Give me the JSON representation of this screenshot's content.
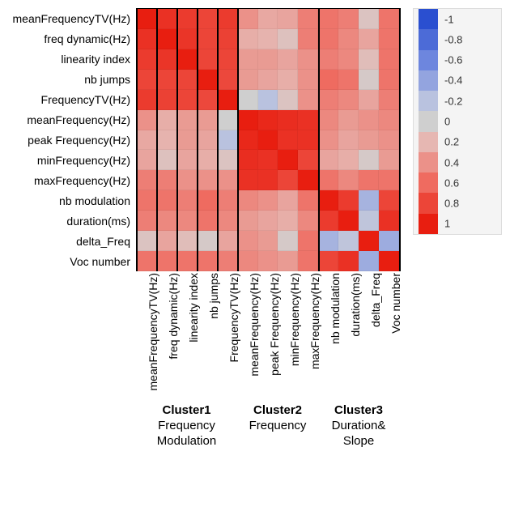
{
  "heatmap": {
    "type": "heatmap",
    "size": 13,
    "cell_border": "rgba(0,0,0,0.05)",
    "background_color": "#ffffff",
    "row_labels": [
      "meanFrequencyTV(Hz)",
      "freq dynamic(Hz)",
      "linearity index",
      "nb jumps",
      "FrequencyTV(Hz)",
      "meanFrequency(Hz)",
      "peak Frequency(Hz)",
      "minFrequency(Hz)",
      "maxFrequency(Hz)",
      "nb modulation",
      "duration(ms)",
      "delta_Freq",
      "Voc number"
    ],
    "col_labels": [
      "meanFrequencyTV(Hz)",
      "freq dynamic(Hz)",
      "linearity index",
      "nb jumps",
      "FrequencyTV(Hz)",
      "meanFrequency(Hz)",
      "peak Frequency(Hz)",
      "minFrequency(Hz)",
      "maxFrequency(Hz)",
      "nb modulation",
      "duration(ms)",
      "delta_Freq",
      "Voc number"
    ],
    "values": [
      [
        1.0,
        0.9,
        0.85,
        0.8,
        0.85,
        0.4,
        0.28,
        0.3,
        0.5,
        0.55,
        0.5,
        0.1,
        0.55
      ],
      [
        0.9,
        1.0,
        0.88,
        0.8,
        0.82,
        0.25,
        0.22,
        0.12,
        0.5,
        0.55,
        0.45,
        0.3,
        0.55
      ],
      [
        0.85,
        0.88,
        1.0,
        0.8,
        0.8,
        0.35,
        0.35,
        0.3,
        0.4,
        0.5,
        0.45,
        0.15,
        0.55
      ],
      [
        0.8,
        0.8,
        0.8,
        1.0,
        0.78,
        0.35,
        0.3,
        0.25,
        0.4,
        0.6,
        0.55,
        0.05,
        0.55
      ],
      [
        0.85,
        0.82,
        0.8,
        0.78,
        1.0,
        0.0,
        -0.2,
        0.1,
        0.4,
        0.5,
        0.45,
        0.3,
        0.5
      ],
      [
        0.4,
        0.25,
        0.35,
        0.35,
        0.0,
        1.0,
        0.95,
        0.92,
        0.9,
        0.45,
        0.35,
        0.4,
        0.45
      ],
      [
        0.28,
        0.22,
        0.35,
        0.3,
        -0.2,
        0.95,
        1.0,
        0.9,
        0.9,
        0.4,
        0.3,
        0.35,
        0.4
      ],
      [
        0.3,
        0.12,
        0.3,
        0.25,
        0.1,
        0.92,
        0.9,
        1.0,
        0.8,
        0.3,
        0.25,
        0.05,
        0.35
      ],
      [
        0.5,
        0.5,
        0.4,
        0.4,
        0.4,
        0.9,
        0.9,
        0.8,
        1.0,
        0.55,
        0.45,
        0.55,
        0.55
      ],
      [
        0.55,
        0.55,
        0.5,
        0.6,
        0.5,
        0.45,
        0.4,
        0.3,
        0.55,
        1.0,
        0.85,
        -0.3,
        0.8
      ],
      [
        0.5,
        0.45,
        0.45,
        0.55,
        0.45,
        0.35,
        0.3,
        0.25,
        0.45,
        0.85,
        1.0,
        -0.15,
        0.9
      ],
      [
        0.1,
        0.3,
        0.15,
        0.05,
        0.3,
        0.4,
        0.35,
        0.05,
        0.55,
        -0.3,
        -0.15,
        1.0,
        -0.35
      ],
      [
        0.55,
        0.55,
        0.55,
        0.55,
        0.5,
        0.45,
        0.4,
        0.35,
        0.55,
        0.8,
        0.9,
        -0.35,
        1.0
      ]
    ],
    "label_fontsize": 14,
    "cluster_vlines_at": [
      0,
      1,
      2,
      3,
      4,
      5,
      9,
      13
    ],
    "clusters": [
      {
        "name": "Cluster1",
        "desc1": "Frequency",
        "desc2": "Modulation",
        "span": 5
      },
      {
        "name": "Cluster2",
        "desc1": "Frequency",
        "desc2": "",
        "span": 4
      },
      {
        "name": "Cluster3",
        "desc1": "Duration&",
        "desc2": "Slope",
        "span": 4
      }
    ]
  },
  "colorbar": {
    "ticks": [
      -1,
      -0.8,
      -0.6,
      -0.4,
      -0.2,
      0,
      0.2,
      0.4,
      0.6,
      0.8,
      1
    ],
    "palette": [
      {
        "v": -1.0,
        "c": "#2a4fd0"
      },
      {
        "v": -0.6,
        "c": "#6d86de"
      },
      {
        "v": -0.2,
        "c": "#b9c2df"
      },
      {
        "v": 0.0,
        "c": "#cfcfcf"
      },
      {
        "v": 0.2,
        "c": "#e6b7b2"
      },
      {
        "v": 0.6,
        "c": "#ef6b60"
      },
      {
        "v": 1.0,
        "c": "#e81e10"
      }
    ],
    "bg": "#f4f4f4",
    "label_fontsize": 13
  }
}
